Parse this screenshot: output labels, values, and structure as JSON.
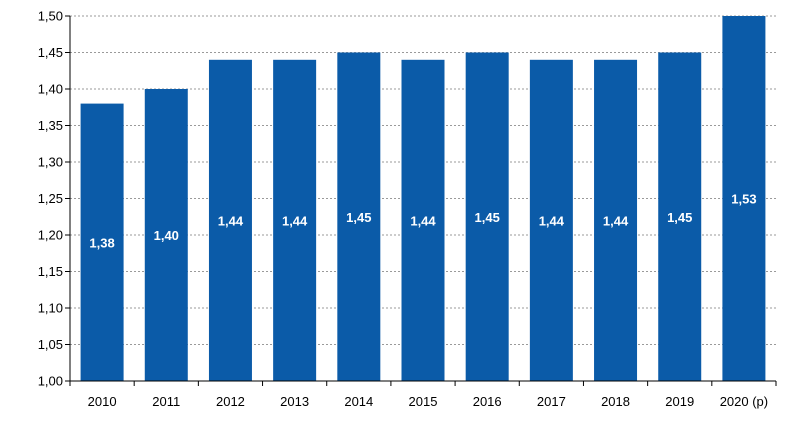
{
  "chart_data": {
    "type": "bar",
    "title": "",
    "xlabel": "",
    "ylabel": "",
    "categories": [
      "2010",
      "2011",
      "2012",
      "2013",
      "2014",
      "2015",
      "2016",
      "2017",
      "2018",
      "2019",
      "2020 (p)"
    ],
    "values": [
      1.38,
      1.4,
      1.44,
      1.44,
      1.45,
      1.44,
      1.45,
      1.44,
      1.44,
      1.45,
      1.53
    ],
    "data_labels": [
      "1,38",
      "1,40",
      "1,44",
      "1,44",
      "1,45",
      "1,44",
      "1,45",
      "1,44",
      "1,44",
      "1,45",
      "1,53"
    ],
    "ylim": [
      1.0,
      1.5
    ],
    "yticks": [
      "1,00",
      "1,05",
      "1,10",
      "1,15",
      "1,20",
      "1,25",
      "1,30",
      "1,35",
      "1,40",
      "1,45",
      "1,50"
    ],
    "grid": true,
    "grid_style": "dashed",
    "legend": "none",
    "bar_color": "#0b5ba8",
    "label_color": "#ffffff"
  }
}
